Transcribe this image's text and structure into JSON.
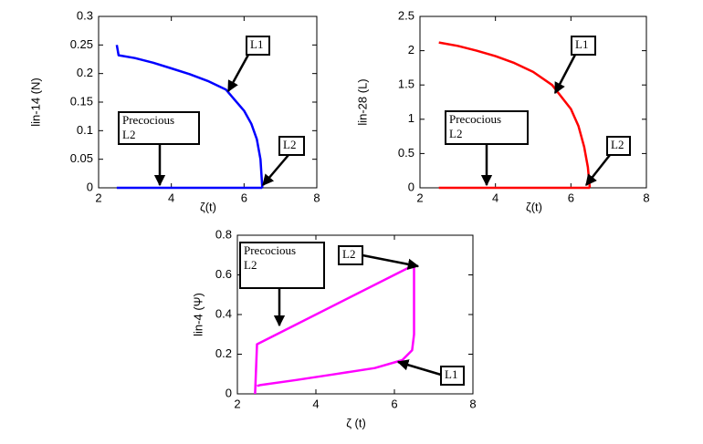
{
  "chart_data": [
    {
      "type": "line",
      "ylabel": "lin-14 (N)",
      "xlabel": "ζ(t)",
      "xlim": [
        2,
        8
      ],
      "xticks": [
        2,
        4,
        6,
        8
      ],
      "ylim": [
        0,
        0.3
      ],
      "yticks": [
        0,
        0.05,
        0.1,
        0.15,
        0.2,
        0.25,
        0.3
      ],
      "series": [
        {
          "color": "#0000ff",
          "x": [
            2.5,
            2.55,
            3,
            3.5,
            4,
            4.5,
            5,
            5.5,
            6,
            6.2,
            6.35,
            6.45,
            6.5
          ],
          "values": [
            0.25,
            0.232,
            0.227,
            0.219,
            0.209,
            0.199,
            0.187,
            0.172,
            0.135,
            0.112,
            0.085,
            0.05,
            0
          ]
        },
        {
          "color": "#0000ff",
          "x": [
            2.5,
            6.5
          ],
          "values": [
            0,
            0
          ]
        }
      ],
      "annotations": [
        {
          "lines": [
            "L1"
          ]
        },
        {
          "lines": [
            "L2"
          ]
        },
        {
          "lines": [
            "Precocious",
            "L2"
          ]
        }
      ]
    },
    {
      "type": "line",
      "ylabel": "lin-28 (L)",
      "xlabel": "ζ(t)",
      "xlim": [
        2,
        8
      ],
      "xticks": [
        2,
        4,
        6,
        8
      ],
      "ylim": [
        0,
        2.5
      ],
      "yticks": [
        0,
        0.5,
        1,
        1.5,
        2,
        2.5
      ],
      "series": [
        {
          "color": "#ff0000",
          "x": [
            2.5,
            3,
            3.5,
            4,
            4.5,
            5,
            5.5,
            6,
            6.2,
            6.35,
            6.45,
            6.5
          ],
          "values": [
            2.12,
            2.07,
            2.0,
            1.92,
            1.82,
            1.69,
            1.5,
            1.15,
            0.9,
            0.6,
            0.3,
            0
          ]
        },
        {
          "color": "#ff0000",
          "x": [
            2.5,
            6.5
          ],
          "values": [
            0,
            0
          ]
        }
      ],
      "annotations": [
        {
          "lines": [
            "L1"
          ]
        },
        {
          "lines": [
            "L2"
          ]
        },
        {
          "lines": [
            "Precocious",
            "L2"
          ]
        }
      ]
    },
    {
      "type": "line",
      "ylabel": "lin-4 (Ψ)",
      "xlabel": "ζ (t)",
      "xlim": [
        2,
        8
      ],
      "xticks": [
        2,
        4,
        6,
        8
      ],
      "ylim": [
        0,
        0.8
      ],
      "yticks": [
        0,
        0.2,
        0.4,
        0.6,
        0.8
      ],
      "series": [
        {
          "color": "#ff00ff",
          "x": [
            2.45,
            2.5,
            6.5,
            6.5,
            6.45,
            6.2,
            5.5,
            4.5,
            3.5,
            2.6,
            2.5
          ],
          "values": [
            0,
            0.25,
            0.65,
            0.3,
            0.22,
            0.17,
            0.13,
            0.1,
            0.07,
            0.045,
            0.04
          ]
        }
      ],
      "annotations": [
        {
          "lines": [
            "Precocious",
            "L2"
          ]
        },
        {
          "lines": [
            "L2"
          ]
        },
        {
          "lines": [
            "L1"
          ]
        }
      ]
    }
  ]
}
